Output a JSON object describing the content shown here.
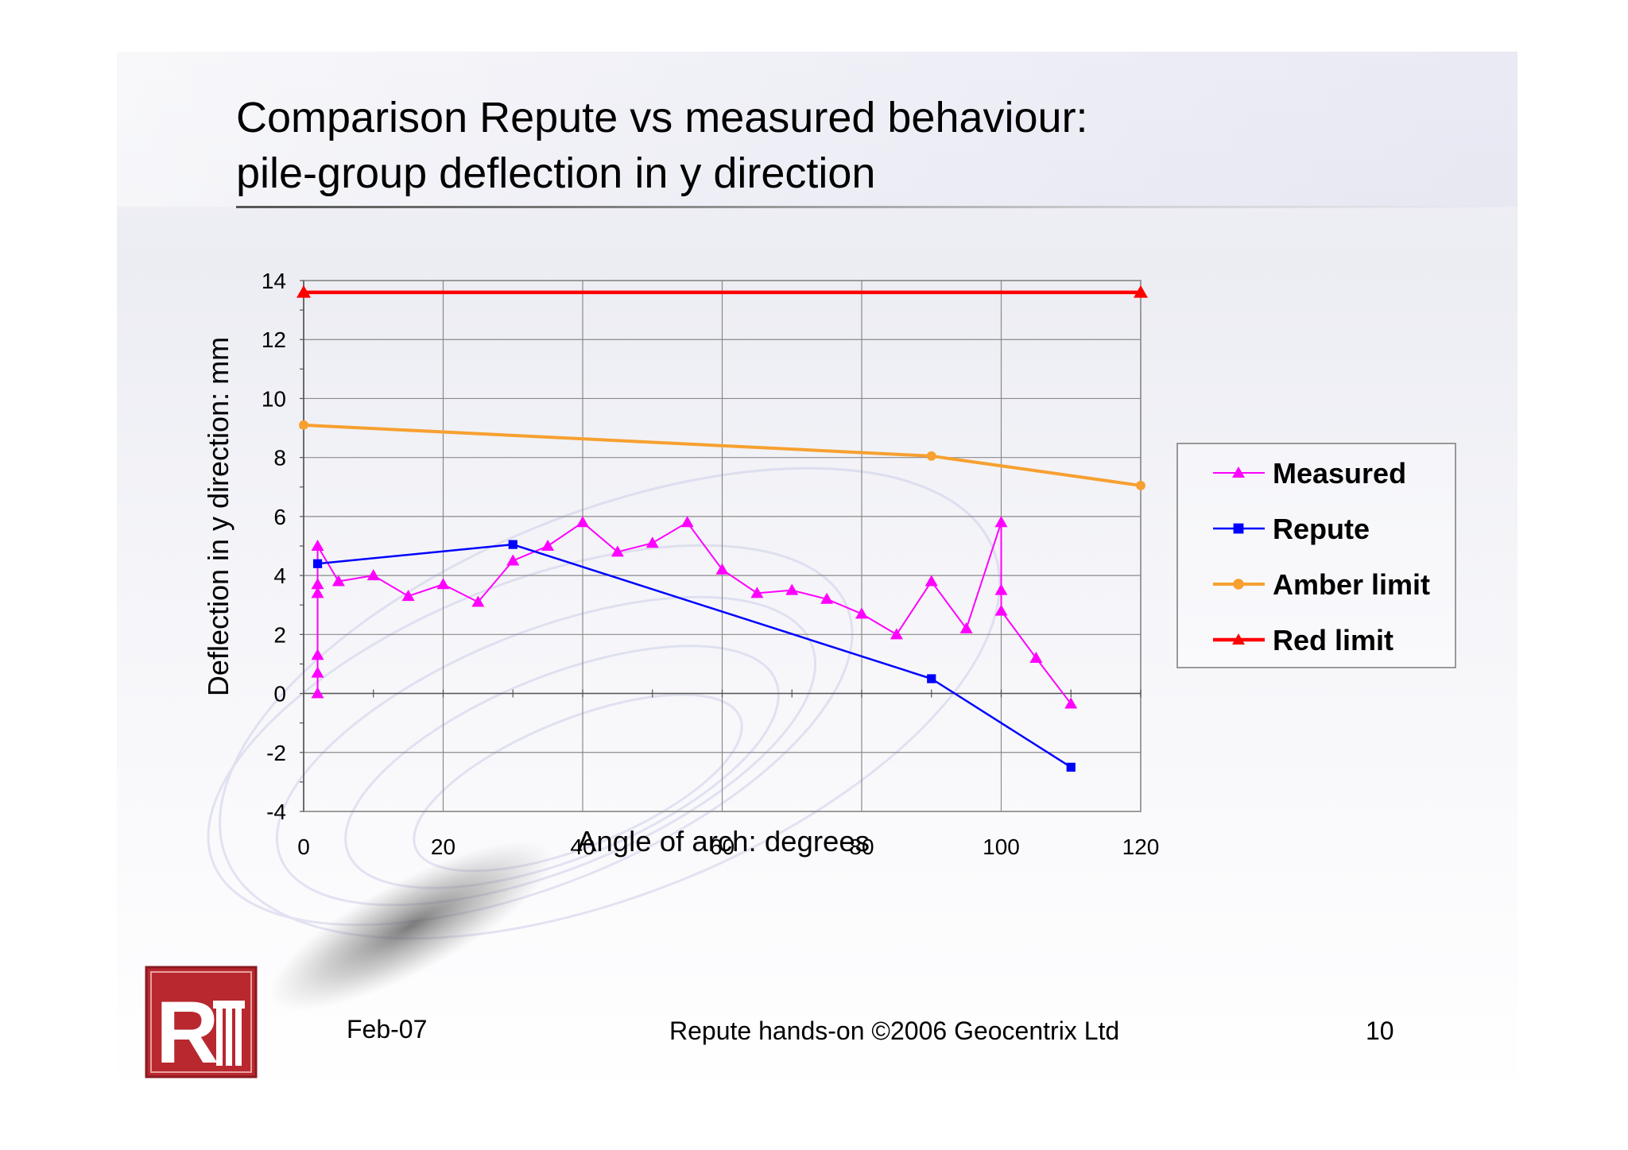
{
  "slide": {
    "title_line1": "Comparison Repute vs measured behaviour:",
    "title_line2": "pile-group deflection in y direction",
    "footer_date": "Feb-07",
    "footer_text": "Repute hands-on ©2006 Geocentrix Ltd",
    "page_number": "10",
    "logo": {
      "letters": "R"
    }
  },
  "chart_data": {
    "type": "line",
    "title": "",
    "xlabel": "Angle of arch:  degrees",
    "ylabel": "Deflection in y direction: mm",
    "xlim": [
      0,
      120
    ],
    "ylim": [
      -4,
      14
    ],
    "xticks": [
      0,
      20,
      40,
      60,
      80,
      100,
      120
    ],
    "yticks": [
      -4,
      -2,
      0,
      2,
      4,
      6,
      8,
      10,
      12,
      14
    ],
    "grid": true,
    "legend_position": "right",
    "series": [
      {
        "name": "Measured",
        "color": "#ff00ff",
        "marker": "triangle",
        "x": [
          2,
          2,
          2,
          2,
          2,
          2,
          5,
          10,
          15,
          20,
          25,
          30,
          35,
          40,
          45,
          50,
          55,
          60,
          65,
          70,
          75,
          80,
          85,
          90,
          95,
          100,
          100,
          100,
          105,
          110
        ],
        "y": [
          0,
          0.7,
          1.3,
          3.4,
          3.7,
          5.0,
          3.8,
          4.0,
          3.3,
          3.7,
          3.1,
          4.5,
          5.0,
          5.8,
          4.8,
          5.1,
          5.8,
          4.2,
          3.4,
          3.5,
          3.2,
          2.7,
          2.0,
          3.8,
          2.2,
          5.8,
          3.5,
          2.8,
          1.2,
          -0.35
        ]
      },
      {
        "name": "Repute",
        "color": "#0000ff",
        "marker": "square",
        "x": [
          2,
          30,
          90,
          110
        ],
        "y": [
          4.4,
          5.05,
          0.5,
          -2.5
        ]
      },
      {
        "name": "Amber limit",
        "color": "#f7a030",
        "marker": "circle",
        "x": [
          0,
          90,
          120
        ],
        "y": [
          9.1,
          8.05,
          7.05
        ]
      },
      {
        "name": "Red limit",
        "color": "#ff0000",
        "marker": "triangle",
        "x": [
          0,
          120
        ],
        "y": [
          13.6,
          13.6
        ]
      }
    ]
  }
}
